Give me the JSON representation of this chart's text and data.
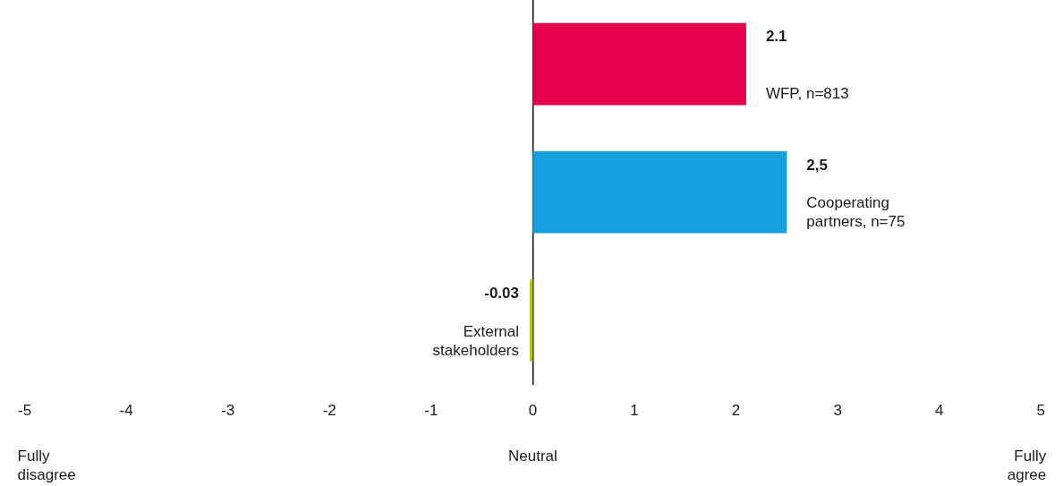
{
  "chart_data": {
    "type": "bar",
    "orientation": "horizontal",
    "categories": [
      "WFP, n=813",
      "Cooperating partners, n=75",
      "External stakeholders"
    ],
    "values": [
      2.1,
      2.5,
      -0.03
    ],
    "colors": [
      "#e4004f",
      "#14a0dc",
      "#b5c40c"
    ],
    "value_labels": [
      "2.1",
      "2,5",
      "-0.03"
    ],
    "xlim": [
      -5,
      5
    ],
    "xticks": [
      -5,
      -4,
      -3,
      -2,
      -1,
      0,
      1,
      2,
      3,
      4,
      5
    ],
    "annotations": [
      "Fully disagree",
      "Neutral",
      "Fully agree"
    ]
  }
}
